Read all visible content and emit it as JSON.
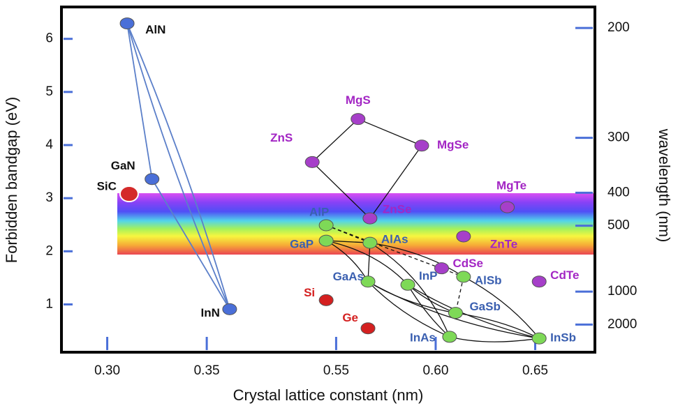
{
  "chart_data": {
    "type": "scatter",
    "x_label": "Crystal lattice constant (nm)",
    "y_label": "Forbidden bandgap (eV)",
    "y2_label": "wavelength (nm)",
    "xlim": [
      0.277,
      0.68
    ],
    "x_break": [
      0.375,
      0.51
    ],
    "xticks": [
      {
        "value": 0.3,
        "label": "0.30"
      },
      0.35,
      0.55,
      {
        "value": 0.6,
        "label": "0.60"
      },
      0.65
    ],
    "ylim": [
      0.1,
      6.6
    ],
    "yticks": [
      1,
      2,
      3,
      4,
      5,
      6
    ],
    "y2scale": "reciprocal",
    "y2lim": [
      12400,
      188
    ],
    "y2ticks": [
      200,
      300,
      400,
      500,
      1000,
      2000
    ],
    "series": [
      {
        "color": "#4a6fd8",
        "label_color": "#111111",
        "labels": [
          "AlN",
          "GaN",
          "InN"
        ],
        "x": [
          0.31,
          0.3225,
          0.3615
        ],
        "values": [
          6.29,
          3.36,
          0.91
        ]
      },
      {
        "color": "#d42a2a",
        "label_color": "#111111",
        "labels": [
          "SiC"
        ],
        "x": [
          0.311
        ],
        "values": [
          3.08
        ]
      },
      {
        "color": "#a63fc9",
        "label_color": "#a326c4",
        "labels": [
          "ZnS",
          "MgS",
          "MgSe",
          "MgTe",
          "ZnSe",
          "ZnTe",
          "CdSe",
          "CdTe"
        ],
        "x": [
          0.538,
          0.561,
          0.593,
          0.636,
          0.567,
          0.614,
          0.603,
          0.652
        ],
        "values": [
          3.68,
          4.49,
          3.99,
          2.83,
          2.62,
          2.28,
          1.68,
          1.43
        ]
      },
      {
        "color": "#7ed957",
        "label_color": "#3a5fb0",
        "labels": [
          "AlP",
          "GaP",
          "AlAs",
          "GaAs",
          "InP",
          "AlSb",
          "GaSb",
          "InAs",
          "InSb"
        ],
        "x": [
          0.545,
          0.545,
          0.567,
          0.566,
          0.586,
          0.614,
          0.61,
          0.607,
          0.652
        ],
        "values": [
          2.49,
          2.2,
          2.16,
          1.43,
          1.37,
          1.52,
          0.84,
          0.39,
          0.36
        ]
      },
      {
        "color": "#d42020",
        "label_color": "#d42020",
        "labels": [
          "Si",
          "Ge"
        ],
        "x": [
          0.545,
          0.566
        ],
        "values": [
          1.08,
          0.55
        ]
      }
    ]
  }
}
